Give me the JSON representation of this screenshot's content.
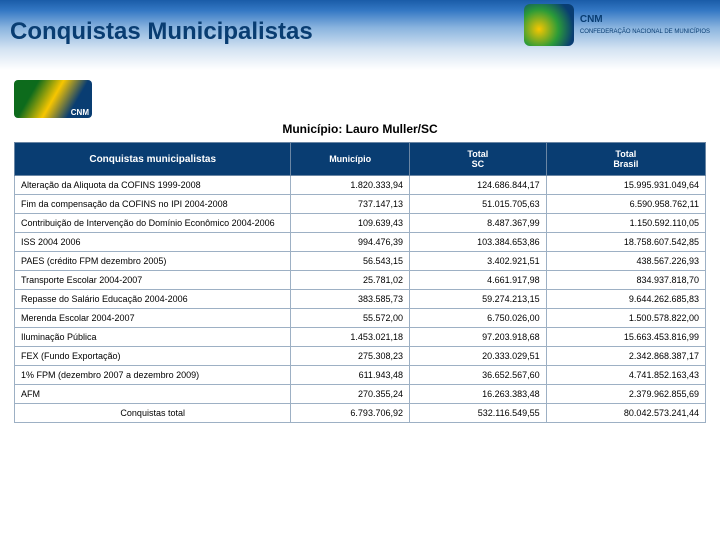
{
  "header": {
    "title": "Conquistas Municipalistas",
    "org": "CNM",
    "org_full": "CONFEDERAÇÃO NACIONAL DE MUNICÍPIOS"
  },
  "municipio_line": "Município: Lauro Muller/SC",
  "table": {
    "headers": [
      "Conquistas municipalistas",
      "Município",
      "Total SC",
      "Total Brasil"
    ],
    "rows": [
      [
        "Alteração da Aliquota da COFINS     1999-2008",
        "1.820.333,94",
        "124.686.844,17",
        "15.995.931.049,64"
      ],
      [
        "Fim da compensação da COFINS no IPI     2004-2008",
        "737.147,13",
        "51.015.705,63",
        "6.590.958.762,11"
      ],
      [
        "Contribuição de Intervenção do Domínio Econômico     2004-2006",
        "109.639,43",
        "8.487.367,99",
        "1.150.592.110,05"
      ],
      [
        "ISS     2004 2006",
        "994.476,39",
        "103.384.653,86",
        "18.758.607.542,85"
      ],
      [
        "PAES     (crédito FPM dezembro 2005)",
        "56.543,15",
        "3.402.921,51",
        "438.567.226,93"
      ],
      [
        "Transporte Escolar     2004-2007",
        "25.781,02",
        "4.661.917,98",
        "834.937.818,70"
      ],
      [
        "Repasse do Salário Educação     2004-2006",
        "383.585,73",
        "59.274.213,15",
        "9.644.262.685,83"
      ],
      [
        "Merenda Escolar     2004-2007",
        "55.572,00",
        "6.750.026,00",
        "1.500.578.822,00"
      ],
      [
        "Iluminação Pública",
        "1.453.021,18",
        "97.203.918,68",
        "15.663.453.816,99"
      ],
      [
        "FEX     (Fundo Exportação)",
        "275.308,23",
        "20.333.029,51",
        "2.342.868.387,17"
      ],
      [
        "1% FPM (dezembro 2007 a dezembro 2009)",
        "611.943,48",
        "36.652.567,60",
        "4.741.852.163,43"
      ],
      [
        "AFM",
        "270.355,24",
        "16.263.383,48",
        "2.379.962.855,69"
      ],
      [
        "Conquistas total",
        "6.793.706,92",
        "532.116.549,55",
        "80.042.573.241,44"
      ]
    ]
  },
  "colors": {
    "header_bg": "#093d72",
    "header_text": "#ffffff",
    "border": "#9db0c4"
  }
}
